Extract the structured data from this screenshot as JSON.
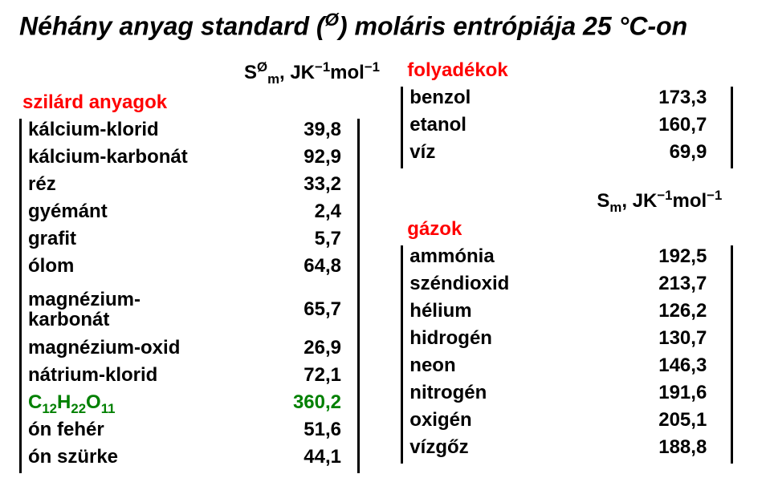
{
  "title_html": "Néhány anyag standard (<sup>Ø</sup>) moláris entrópiája 25 °C-on",
  "left_unit_html": "S<sup>Ø</sup><sub>m</sub>, JK<sup>−1</sup>mol<sup>−1</sup>",
  "left_heading": "szilárd anyagok",
  "left_rows": [
    {
      "label": "kálcium-klorid",
      "value": "39,8"
    },
    {
      "label": "kálcium-karbonát",
      "value": "92,9"
    },
    {
      "label": "réz",
      "value": "33,2"
    },
    {
      "label": "gyémánt",
      "value": "2,4"
    },
    {
      "label": "grafit",
      "value": "5,7"
    },
    {
      "label": "ólom",
      "value": "64,8"
    },
    {
      "label_html": "magnézium-<br>karbonát",
      "value": "65,7",
      "twoline": true
    },
    {
      "label": "magnézium-oxid",
      "value": "26,9"
    },
    {
      "label": "nátrium-klorid",
      "value": "72,1"
    },
    {
      "label_html": "C<sub>12</sub>H<sub>22</sub>O<sub>11</sub>",
      "value": "360,2",
      "highlight": true
    },
    {
      "label": "ón fehér",
      "value": "51,6"
    },
    {
      "label": "ón szürke",
      "value": "44,1"
    }
  ],
  "right_heading1": "folyadékok",
  "right_rows1": [
    {
      "label": "benzol",
      "value": "173,3"
    },
    {
      "label": "etanol",
      "value": "160,7"
    },
    {
      "label": "víz",
      "value": "69,9"
    }
  ],
  "right_unit_html": "S<sub>m</sub>, JK<sup>−1</sup>mol<sup>−1</sup>",
  "right_heading2": "gázok",
  "right_rows2": [
    {
      "label": "ammónia",
      "value": "192,5"
    },
    {
      "label": "széndioxid",
      "value": "213,7"
    },
    {
      "label": "hélium",
      "value": "126,2"
    },
    {
      "label": "hidrogén",
      "value": "130,7"
    },
    {
      "label": "neon",
      "value": "146,3"
    },
    {
      "label": "nitrogén",
      "value": "191,6"
    },
    {
      "label": "oxigén",
      "value": "205,1"
    },
    {
      "label": "vízgőz",
      "value": "188,8"
    }
  ],
  "colors": {
    "heading": "#ff0000",
    "highlight": "#008000",
    "text": "#000000",
    "border": "#000000",
    "bg": "#ffffff"
  }
}
